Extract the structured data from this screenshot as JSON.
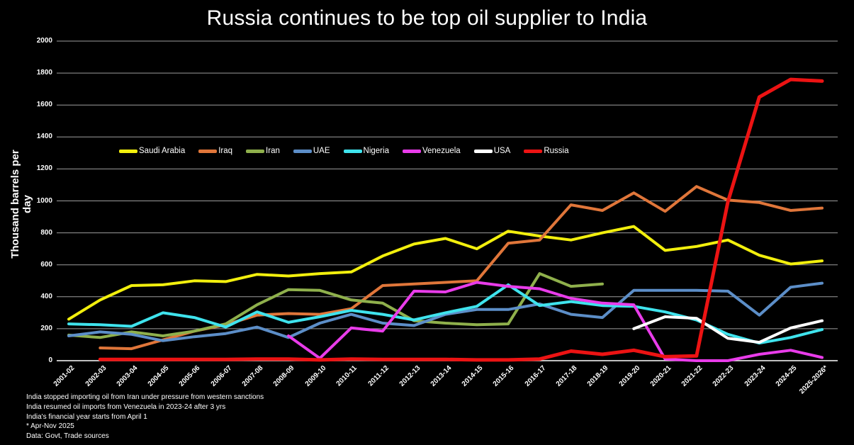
{
  "chart_data": {
    "type": "line",
    "title": "Russia continues to be top oil supplier to India",
    "ylabel": "Thousand barrels per day",
    "xlabel": "",
    "ylim": [
      0,
      2000
    ],
    "y_tick_step": 200,
    "grid": true,
    "legend_position": "top-inside",
    "background": "#000000",
    "grid_color": "#9d9d9d",
    "axis_line_color": "#ffffff",
    "text_color": "#ffffff",
    "categories": [
      "2001-02",
      "2002-03",
      "2003-04",
      "2004-05",
      "2005-06",
      "2006-07",
      "2007-08",
      "2008-09",
      "2009-10",
      "2010-11",
      "2011-12",
      "2012-13",
      "2013-14",
      "2014-15",
      "2015-16",
      "2016-17",
      "2017-18",
      "2018-19",
      "2019-20",
      "2020-21",
      "2021-22",
      "2022-23",
      "2023-24",
      "2024-25",
      "2025-2026*"
    ],
    "series": [
      {
        "name": "Saudi Arabia",
        "color": "#f2ef0d",
        "values": [
          260,
          380,
          470,
          475,
          500,
          495,
          540,
          530,
          545,
          555,
          655,
          730,
          765,
          700,
          810,
          780,
          755,
          800,
          840,
          690,
          715,
          755,
          660,
          605,
          625
        ]
      },
      {
        "name": "Iraq",
        "color": "#e0763a",
        "values": [
          null,
          80,
          75,
          130,
          185,
          225,
          285,
          295,
          290,
          325,
          470,
          480,
          490,
          500,
          735,
          755,
          975,
          940,
          1050,
          935,
          1090,
          1005,
          990,
          940,
          955
        ]
      },
      {
        "name": "Iran",
        "color": "#8fb04c",
        "values": [
          160,
          145,
          180,
          155,
          185,
          230,
          350,
          445,
          440,
          380,
          360,
          250,
          235,
          225,
          230,
          545,
          465,
          480,
          null,
          null,
          null,
          null,
          null,
          null,
          null
        ]
      },
      {
        "name": "UAE",
        "color": "#5c8ec8",
        "values": [
          155,
          180,
          165,
          125,
          150,
          170,
          210,
          145,
          235,
          290,
          235,
          220,
          290,
          320,
          320,
          355,
          290,
          270,
          440,
          440,
          440,
          435,
          285,
          460,
          485
        ]
      },
      {
        "name": "Nigeria",
        "color": "#3fe3ed",
        "values": [
          230,
          225,
          215,
          300,
          270,
          210,
          305,
          240,
          275,
          315,
          290,
          255,
          300,
          340,
          475,
          345,
          370,
          345,
          340,
          305,
          255,
          165,
          110,
          145,
          195
        ]
      },
      {
        "name": "Venezuela",
        "color": "#e93cea",
        "values": [
          null,
          null,
          null,
          null,
          null,
          null,
          null,
          155,
          15,
          205,
          185,
          435,
          430,
          490,
          465,
          450,
          390,
          360,
          350,
          10,
          0,
          0,
          40,
          65,
          20
        ]
      },
      {
        "name": "USA",
        "color": "#ffffff",
        "values": [
          null,
          null,
          null,
          null,
          null,
          null,
          null,
          null,
          null,
          null,
          null,
          null,
          null,
          null,
          null,
          null,
          null,
          null,
          200,
          275,
          265,
          140,
          115,
          205,
          250
        ]
      },
      {
        "name": "Russia",
        "color": "#ec1313",
        "values": [
          null,
          8,
          8,
          8,
          8,
          8,
          10,
          10,
          5,
          10,
          8,
          8,
          8,
          5,
          5,
          10,
          60,
          40,
          65,
          25,
          30,
          995,
          1650,
          1760,
          1750
        ]
      }
    ],
    "annotations": [
      "India stopped importing oil from Iran under pressure from western sanctions",
      "India resumed oil imports from Venezuela in 2023-24 after 3 yrs",
      "India's financial year starts from April 1",
      "* Apr-Nov 2025",
      "Data: Govt, Trade sources"
    ]
  }
}
